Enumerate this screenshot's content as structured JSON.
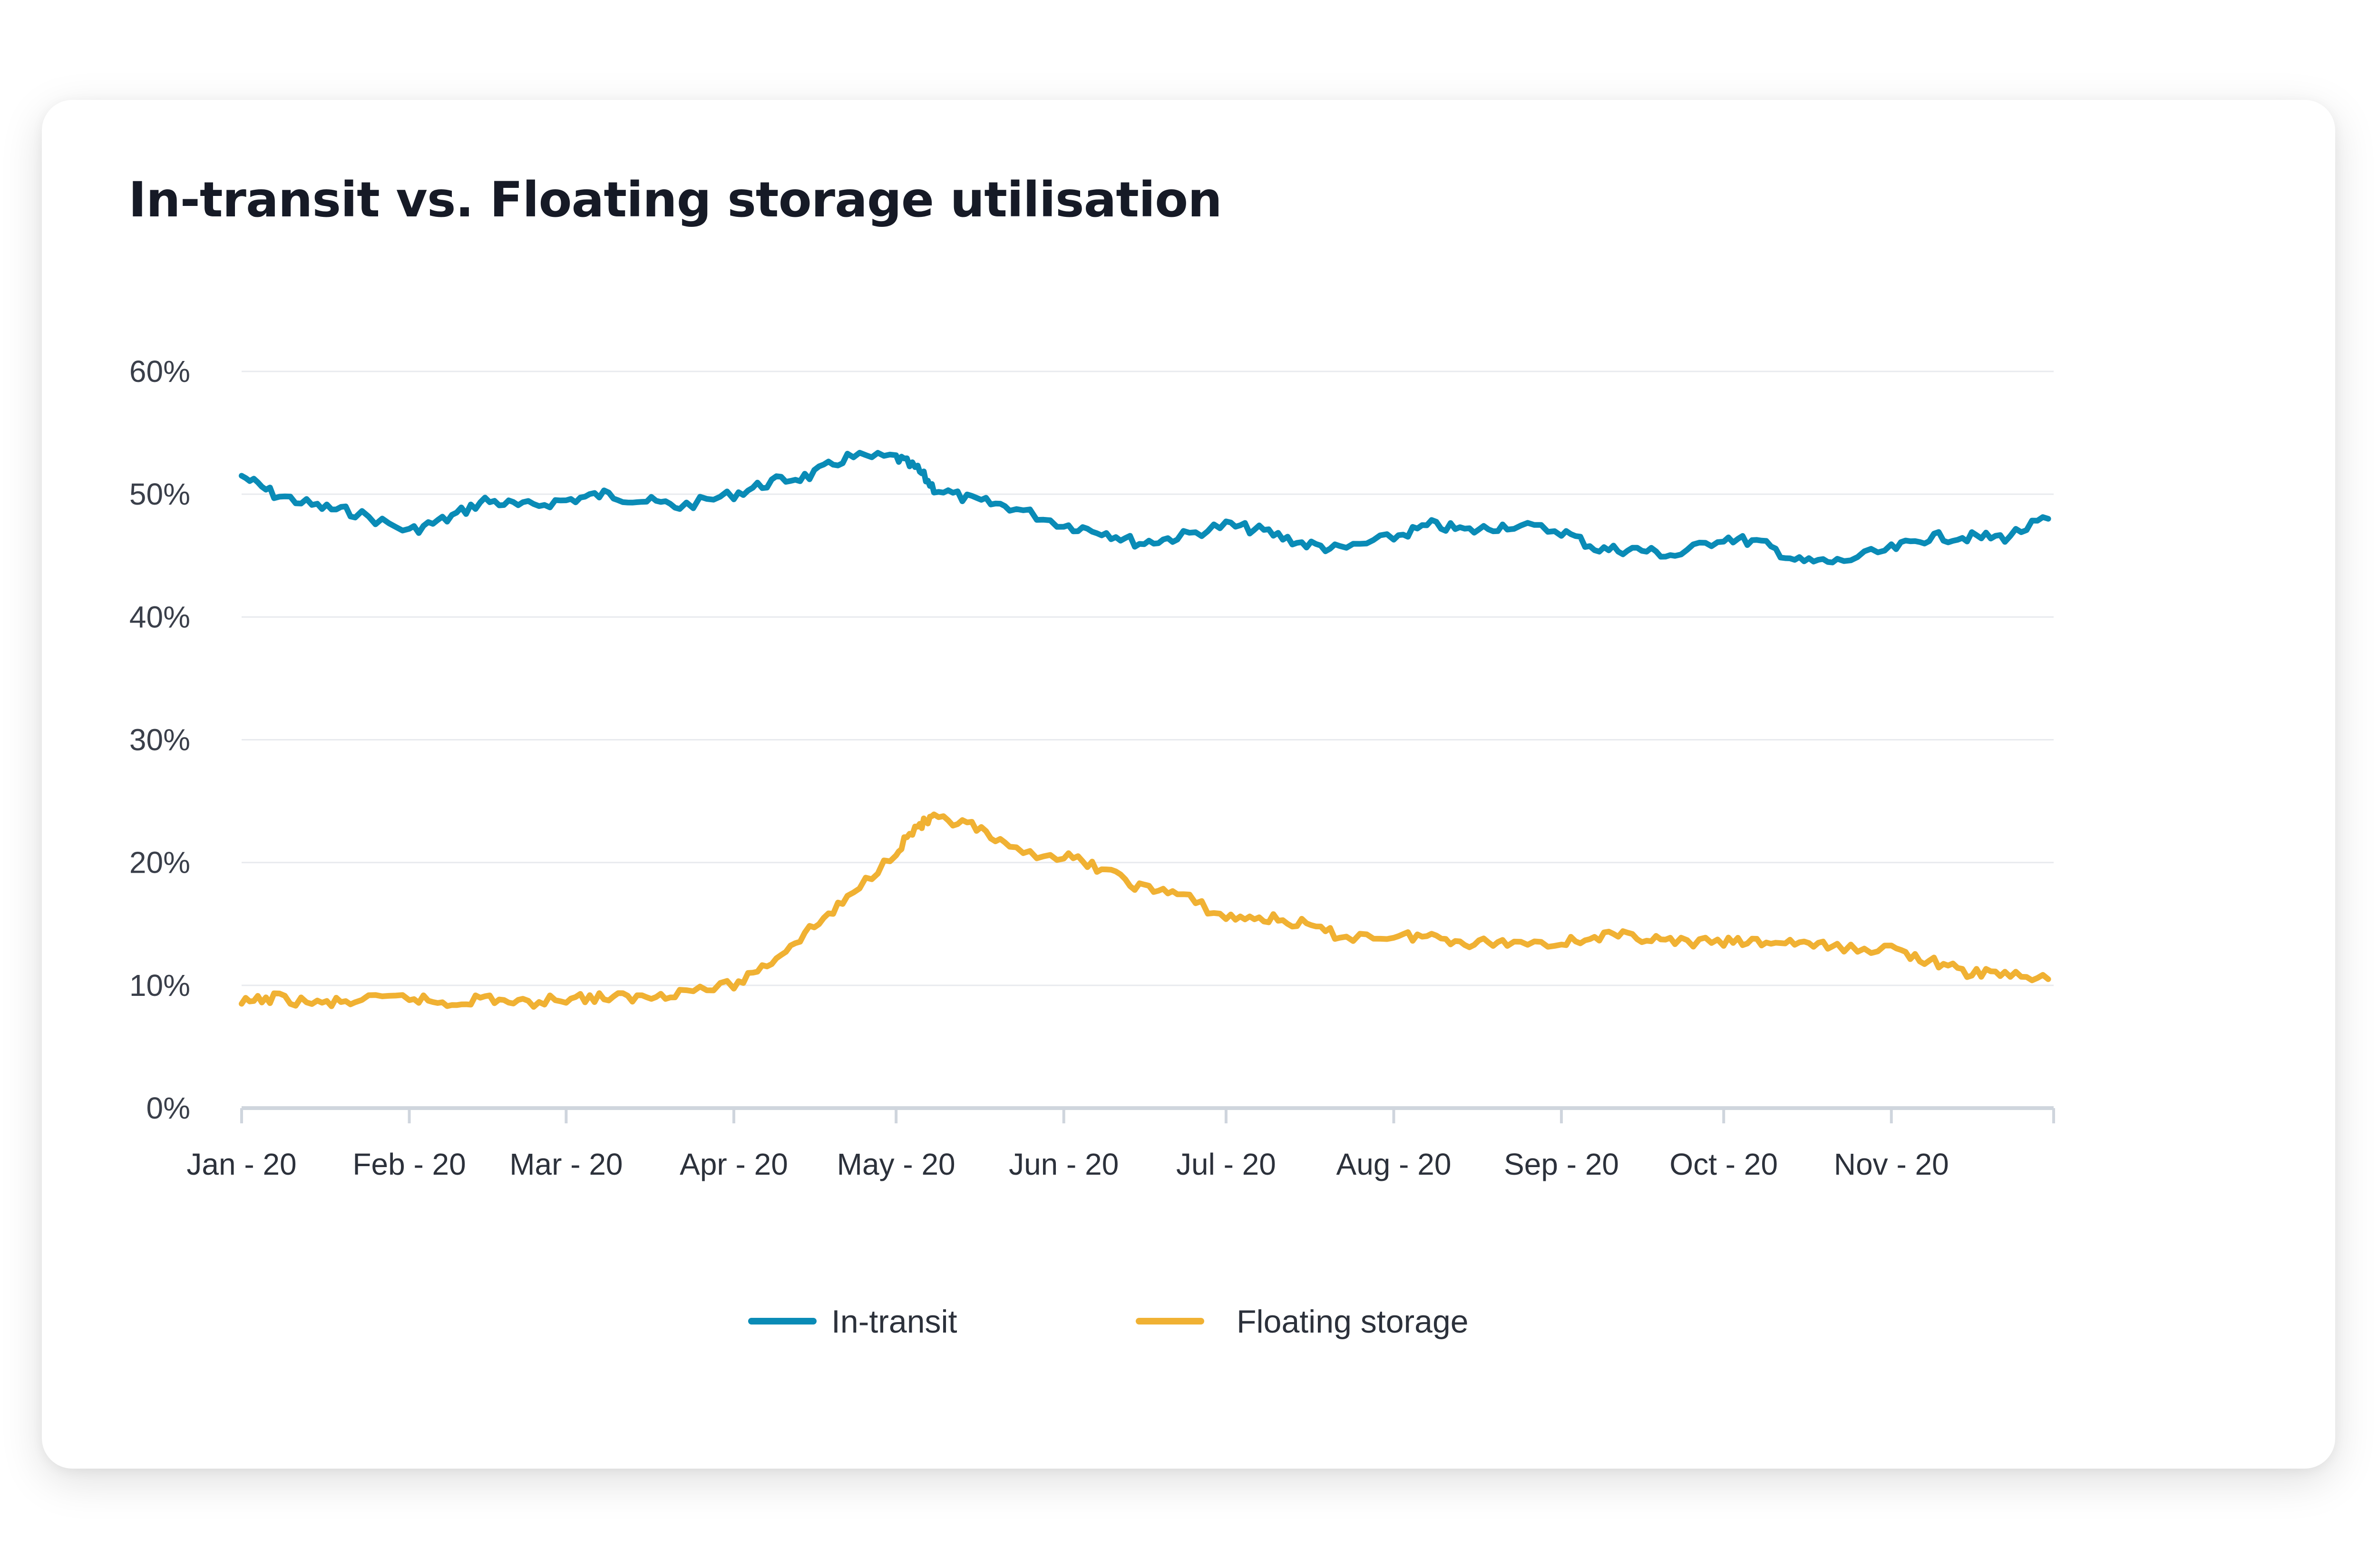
{
  "card": {
    "title": "In-transit vs. Floating storage utilisation"
  },
  "chart_data": {
    "type": "line",
    "title": "In-transit vs. Floating storage utilisation",
    "xlabel": "",
    "ylabel": "",
    "x_tick_labels": [
      "Jan - 20",
      "Feb - 20",
      "Mar - 20",
      "Apr - 20",
      "May - 20",
      "Jun - 20",
      "Jul - 20",
      "Aug - 20",
      "Sep - 20",
      "Oct - 20",
      "Nov - 20"
    ],
    "y_tick_labels": [
      "0%",
      "10%",
      "20%",
      "30%",
      "40%",
      "50%",
      "60%"
    ],
    "ylim": [
      0,
      60
    ],
    "y_unit": "%",
    "grid": "horizontal",
    "legend_position": "bottom-center",
    "series": [
      {
        "name": "In-transit",
        "color": "#0a8bb6",
        "x": [
          "2020-01-01",
          "2020-01-07",
          "2020-01-15",
          "2020-01-22",
          "2020-02-01",
          "2020-02-08",
          "2020-02-15",
          "2020-02-22",
          "2020-03-01",
          "2020-03-08",
          "2020-03-15",
          "2020-03-22",
          "2020-04-01",
          "2020-04-08",
          "2020-04-15",
          "2020-04-22",
          "2020-05-01",
          "2020-05-05",
          "2020-05-08",
          "2020-05-15",
          "2020-05-22",
          "2020-06-01",
          "2020-06-08",
          "2020-06-15",
          "2020-06-22",
          "2020-07-01",
          "2020-07-08",
          "2020-07-15",
          "2020-07-22",
          "2020-08-01",
          "2020-08-08",
          "2020-08-15",
          "2020-08-22",
          "2020-09-01",
          "2020-09-08",
          "2020-09-15",
          "2020-09-22",
          "2020-10-01",
          "2020-10-08",
          "2020-10-15",
          "2020-10-22",
          "2020-11-01",
          "2020-11-08",
          "2020-11-15",
          "2020-11-22",
          "2020-11-30"
        ],
        "values": [
          51.5,
          50.0,
          49.0,
          48.5,
          47.0,
          48.0,
          49.5,
          49.0,
          49.5,
          50.0,
          49.5,
          49.0,
          50.0,
          51.0,
          51.5,
          53.0,
          53.0,
          52.0,
          50.5,
          49.5,
          49.0,
          47.5,
          47.0,
          46.0,
          46.5,
          47.5,
          47.0,
          46.0,
          45.5,
          46.5,
          47.5,
          47.0,
          47.5,
          47.0,
          45.5,
          45.5,
          45.0,
          46.5,
          46.0,
          44.5,
          44.5,
          45.5,
          46.5,
          46.5,
          46.5,
          48.0
        ]
      },
      {
        "name": "Floating storage",
        "color": "#f0b133",
        "x": [
          "2020-01-01",
          "2020-01-07",
          "2020-01-15",
          "2020-01-22",
          "2020-02-01",
          "2020-02-08",
          "2020-02-15",
          "2020-02-22",
          "2020-03-01",
          "2020-03-08",
          "2020-03-15",
          "2020-03-22",
          "2020-04-01",
          "2020-04-08",
          "2020-04-15",
          "2020-04-22",
          "2020-05-01",
          "2020-05-05",
          "2020-05-08",
          "2020-05-15",
          "2020-05-22",
          "2020-06-01",
          "2020-06-08",
          "2020-06-15",
          "2020-06-22",
          "2020-07-01",
          "2020-07-08",
          "2020-07-15",
          "2020-07-22",
          "2020-08-01",
          "2020-08-08",
          "2020-08-15",
          "2020-08-22",
          "2020-09-01",
          "2020-09-08",
          "2020-09-15",
          "2020-09-22",
          "2020-10-01",
          "2020-10-08",
          "2020-10-15",
          "2020-10-22",
          "2020-11-01",
          "2020-11-08",
          "2020-11-15",
          "2020-11-22",
          "2020-11-30"
        ],
        "values": [
          8.5,
          9.0,
          8.5,
          8.7,
          9.0,
          8.5,
          9.0,
          8.5,
          9.0,
          9.0,
          9.0,
          9.5,
          10.0,
          12.0,
          14.5,
          17.0,
          21.0,
          23.0,
          23.5,
          23.0,
          21.0,
          20.5,
          19.5,
          18.0,
          17.5,
          15.5,
          15.5,
          15.0,
          14.0,
          14.0,
          14.0,
          13.5,
          13.5,
          13.5,
          14.0,
          14.0,
          13.5,
          13.5,
          13.5,
          13.5,
          13.0,
          13.0,
          12.0,
          11.0,
          11.0,
          10.5
        ]
      }
    ]
  }
}
